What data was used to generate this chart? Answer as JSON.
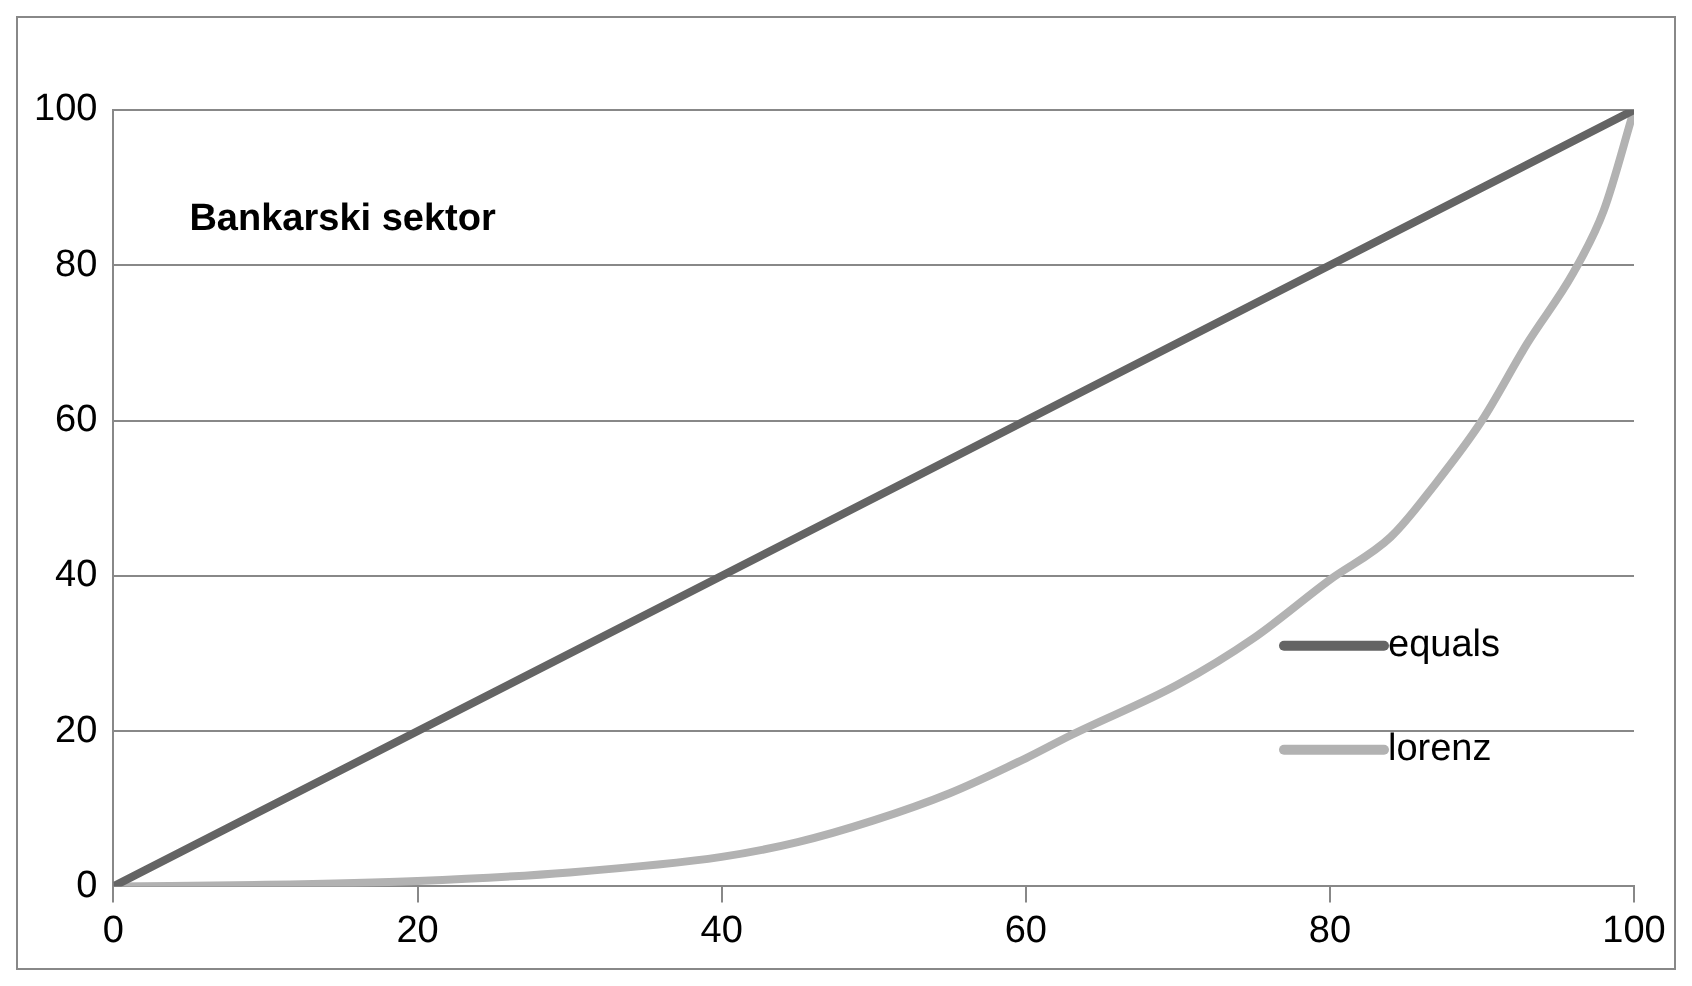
{
  "chart_data": {
    "type": "line",
    "title": "Bankarski sektor",
    "xlim": [
      0,
      100
    ],
    "xticks": [
      0,
      20,
      40,
      60,
      80,
      100
    ],
    "ylim": [
      0,
      100
    ],
    "yticks": [
      0,
      20,
      40,
      60,
      80,
      100
    ],
    "grid": "y",
    "legend": "right",
    "marker": "none",
    "line_style": "solid",
    "series": [
      {
        "name": "equals",
        "color": "#646464",
        "x": [
          0,
          100
        ],
        "values": [
          0,
          100
        ]
      },
      {
        "name": "lorenz",
        "color": "#b2b2b2",
        "x": [
          0,
          10,
          20,
          30,
          40,
          45,
          50,
          55,
          60,
          63,
          70,
          75,
          80,
          84,
          87,
          90,
          93,
          96,
          98,
          100
        ],
        "values": [
          0,
          0.2,
          0.7,
          1.8,
          3.8,
          5.7,
          8.5,
          12,
          16.5,
          19.5,
          26,
          32,
          39.5,
          45,
          52,
          60,
          70,
          79,
          87,
          100
        ]
      }
    ]
  }
}
